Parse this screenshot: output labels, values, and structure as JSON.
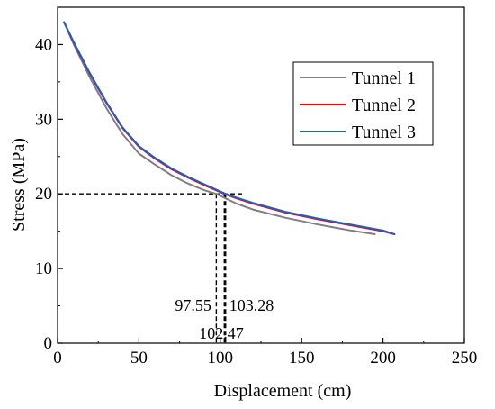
{
  "chart_data": {
    "type": "line",
    "title": "",
    "xlabel": "Displacement (cm)",
    "ylabel": "Stress (MPa)",
    "xlim": [
      0,
      250
    ],
    "ylim": [
      0,
      45
    ],
    "xticks": [
      0,
      50,
      100,
      150,
      200,
      250
    ],
    "yticks": [
      0,
      10,
      20,
      30,
      40
    ],
    "grid": false,
    "legend_position": "top-right",
    "series": [
      {
        "name": "Tunnel 1",
        "color": "#7f7f7f",
        "x": [
          4,
          10,
          20,
          30,
          40,
          50,
          60,
          70,
          80,
          90,
          97.55,
          110,
          120,
          140,
          160,
          180,
          195
        ],
        "y": [
          43,
          40,
          35.5,
          31.5,
          28,
          25.4,
          23.9,
          22.5,
          21.4,
          20.5,
          20,
          18.7,
          17.9,
          16.8,
          15.9,
          15.1,
          14.6
        ]
      },
      {
        "name": "Tunnel 2",
        "color": "#ff0000",
        "x": [
          4,
          10,
          20,
          30,
          40,
          50,
          60,
          70,
          80,
          90,
          102.47,
          110,
          120,
          140,
          160,
          180,
          200,
          207
        ],
        "y": [
          43,
          40.2,
          36,
          32.2,
          28.8,
          26.3,
          24.7,
          23.3,
          22.2,
          21.2,
          20,
          19.4,
          18.7,
          17.5,
          16.6,
          15.8,
          15,
          14.6
        ]
      },
      {
        "name": "Tunnel 3",
        "color": "#1f5fbf",
        "x": [
          4,
          10,
          20,
          30,
          40,
          50,
          60,
          70,
          80,
          90,
          103.28,
          110,
          120,
          140,
          160,
          180,
          200,
          207
        ],
        "y": [
          43,
          40.3,
          36.1,
          32.3,
          28.9,
          26.4,
          24.8,
          23.4,
          22.3,
          21.3,
          20,
          19.5,
          18.8,
          17.6,
          16.7,
          15.9,
          15.1,
          14.6
        ]
      }
    ],
    "reference": {
      "y": 20,
      "x_markers": [
        97.55,
        102.47,
        103.28
      ],
      "x_marker_labels": [
        "97.55",
        "102.47",
        "103.28"
      ]
    }
  }
}
